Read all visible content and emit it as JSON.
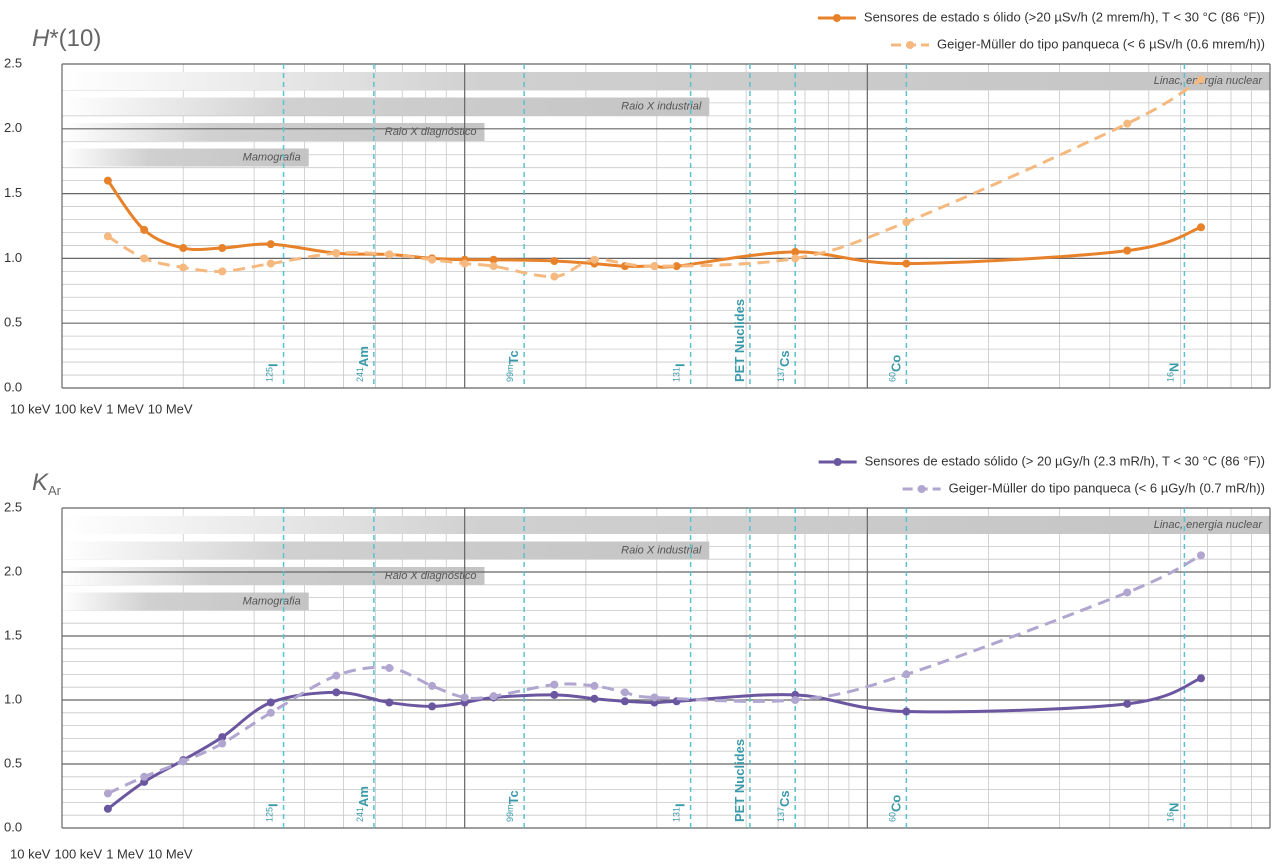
{
  "chart_data": [
    {
      "type": "line",
      "ylabel": {
        "symbol": "H",
        "suffix": "*(10)"
      },
      "xlog": true,
      "xlim": [
        10,
        10000
      ],
      "xticks": [
        {
          "value": 10,
          "label": "10 keV"
        },
        {
          "value": 100,
          "label": "100 keV"
        },
        {
          "value": 1000,
          "label": "1 MeV"
        },
        {
          "value": 10000,
          "label": "10 MeV"
        }
      ],
      "xticks_minor": [
        20,
        30,
        40,
        50,
        60,
        70,
        80,
        90,
        200,
        300,
        400,
        500,
        600,
        700,
        800,
        900,
        2000,
        3000,
        4000,
        5000,
        6000,
        7000,
        8000,
        9000
      ],
      "ylim": [
        0,
        2.5
      ],
      "yticks": [
        {
          "value": 0,
          "label": "0.0"
        },
        {
          "value": 0.5,
          "label": "0.5"
        },
        {
          "value": 1,
          "label": "1.0"
        },
        {
          "value": 1.5,
          "label": "1.5"
        },
        {
          "value": 2,
          "label": "2.0"
        },
        {
          "value": 2.5,
          "label": "2.5"
        }
      ],
      "yticks_minor": [
        0.1,
        0.2,
        0.3,
        0.4,
        0.6,
        0.7,
        0.8,
        0.9,
        1.1,
        1.2,
        1.3,
        1.4,
        1.6,
        1.7,
        1.8,
        1.9,
        2.1,
        2.2,
        2.3,
        2.4
      ],
      "grid": true,
      "legend": "upper right",
      "bands": [
        {
          "label": "Linac, energia nuclear",
          "x": [
            10,
            10000
          ]
        },
        {
          "label": "Raio X industrial",
          "x": [
            10,
            405
          ]
        },
        {
          "label": "Raio X diagnóstico",
          "x": [
            10,
            112
          ]
        },
        {
          "label": "Mamografia",
          "x": [
            10,
            41
          ]
        }
      ],
      "nuclides": [
        {
          "sup": "125",
          "label": "I",
          "x": 35.5
        },
        {
          "sup": "241",
          "label": "Am",
          "x": 59.5
        },
        {
          "sup": "99m",
          "label": "Tc",
          "x": 140.5
        },
        {
          "sup": "131",
          "label": "I",
          "x": 364
        },
        {
          "label": "PET Nuclides",
          "x": 511
        },
        {
          "sup": "137",
          "label": "Cs",
          "x": 662
        },
        {
          "sup": "60",
          "label": "Co",
          "x": 1250
        },
        {
          "sup": "16",
          "label": "N",
          "x": 6130
        }
      ],
      "series": [
        {
          "name": "Sensores de estado s ólido (>20 µSv/h (2 mrem/h), T < 30 °C (86 °F))",
          "color": "#e8822a",
          "dashed": false,
          "x": [
            13,
            16,
            20,
            25,
            33,
            48,
            65,
            83,
            100,
            118,
            167,
            210,
            250,
            296,
            336,
            662,
            1250,
            4420,
            6740
          ],
          "values": [
            1.6,
            1.22,
            1.08,
            1.08,
            1.11,
            1.04,
            1.03,
            1.0,
            0.99,
            0.99,
            0.98,
            0.96,
            0.94,
            0.94,
            0.94,
            1.05,
            0.96,
            1.06,
            1.24
          ]
        },
        {
          "name": "Geiger-Müller do tipo panqueca (< 6 µSv/h (0.6 mrem/h))",
          "color": "#f5b97f",
          "dashed": true,
          "x": [
            13,
            16,
            20,
            25,
            33,
            48,
            65,
            83,
            100,
            118,
            167,
            210,
            296,
            662,
            1250,
            4420,
            6740
          ],
          "values": [
            1.17,
            1.0,
            0.93,
            0.9,
            0.96,
            1.04,
            1.03,
            0.99,
            0.96,
            0.94,
            0.86,
            0.99,
            0.94,
            1.0,
            1.28,
            2.04,
            2.38
          ]
        }
      ]
    },
    {
      "type": "line",
      "ylabel": {
        "symbol": "K",
        "subscript": "Ar"
      },
      "xlog": true,
      "xlim": [
        10,
        10000
      ],
      "xticks": [
        {
          "value": 10,
          "label": "10 keV"
        },
        {
          "value": 100,
          "label": "100 keV"
        },
        {
          "value": 1000,
          "label": "1 MeV"
        },
        {
          "value": 10000,
          "label": "10 MeV"
        }
      ],
      "xticks_minor": [
        20,
        30,
        40,
        50,
        60,
        70,
        80,
        90,
        200,
        300,
        400,
        500,
        600,
        700,
        800,
        900,
        2000,
        3000,
        4000,
        5000,
        6000,
        7000,
        8000,
        9000
      ],
      "ylim": [
        0,
        2.5
      ],
      "yticks": [
        {
          "value": 0,
          "label": "0.0"
        },
        {
          "value": 0.5,
          "label": "0.5"
        },
        {
          "value": 1,
          "label": "1.0"
        },
        {
          "value": 1.5,
          "label": "1.5"
        },
        {
          "value": 2,
          "label": "2.0"
        },
        {
          "value": 2.5,
          "label": "2.5"
        }
      ],
      "yticks_minor": [
        0.1,
        0.2,
        0.3,
        0.4,
        0.6,
        0.7,
        0.8,
        0.9,
        1.1,
        1.2,
        1.3,
        1.4,
        1.6,
        1.7,
        1.8,
        1.9,
        2.1,
        2.2,
        2.3,
        2.4
      ],
      "grid": true,
      "legend": "upper right",
      "bands": [
        {
          "label": "Linac, energia nuclear",
          "x": [
            10,
            10000
          ]
        },
        {
          "label": "Raio X industrial",
          "x": [
            10,
            405
          ]
        },
        {
          "label": "Raio X diagnóstico",
          "x": [
            10,
            112
          ]
        },
        {
          "label": "Mamografia",
          "x": [
            10,
            41
          ]
        }
      ],
      "nuclides": [
        {
          "sup": "125",
          "label": "I",
          "x": 35.5
        },
        {
          "sup": "241",
          "label": "Am",
          "x": 59.5
        },
        {
          "sup": "99m",
          "label": "Tc",
          "x": 140.5
        },
        {
          "sup": "131",
          "label": "I",
          "x": 364
        },
        {
          "label": "PET Nuclides",
          "x": 511
        },
        {
          "sup": "137",
          "label": "Cs",
          "x": 662
        },
        {
          "sup": "60",
          "label": "Co",
          "x": 1250
        },
        {
          "sup": "16",
          "label": "N",
          "x": 6130
        }
      ],
      "series": [
        {
          "name": "Sensores de estado sólido (> 20 µGy/h (2.3 mR/h), T < 30 °C (86 °F))",
          "color": "#6b56a0",
          "dashed": false,
          "x": [
            13,
            16,
            20,
            25,
            33,
            48,
            65,
            83,
            100,
            118,
            167,
            210,
            250,
            296,
            336,
            662,
            1250,
            4420,
            6740
          ],
          "values": [
            0.15,
            0.36,
            0.53,
            0.71,
            0.98,
            1.06,
            0.98,
            0.95,
            0.98,
            1.02,
            1.04,
            1.01,
            0.99,
            0.98,
            0.99,
            1.04,
            0.91,
            0.97,
            1.17
          ]
        },
        {
          "name": "Geiger-Müller do tipo panqueca (< 6 µGy/h (0.7 mR/h))",
          "color": "#b0a6d0",
          "dashed": true,
          "x": [
            13,
            16,
            20,
            25,
            33,
            48,
            65,
            83,
            100,
            118,
            167,
            210,
            250,
            296,
            662,
            1250,
            4420,
            6740
          ],
          "values": [
            0.27,
            0.4,
            0.52,
            0.66,
            0.9,
            1.19,
            1.25,
            1.11,
            1.02,
            1.03,
            1.12,
            1.11,
            1.06,
            1.02,
            1.0,
            1.2,
            1.84,
            2.13
          ]
        }
      ]
    }
  ]
}
